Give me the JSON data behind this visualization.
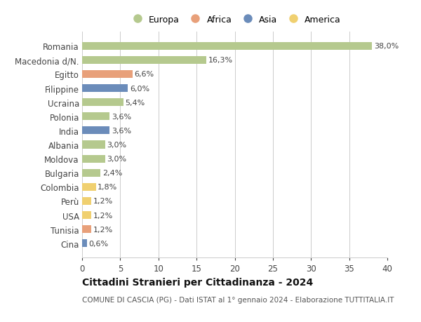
{
  "title": "Cittadini Stranieri per Cittadinanza - 2024",
  "subtitle": "COMUNE DI CASCIA (PG) - Dati ISTAT al 1° gennaio 2024 - Elaborazione TUTTITALIA.IT",
  "legend_labels": [
    "Europa",
    "Africa",
    "Asia",
    "America"
  ],
  "legend_colors": [
    "#b5c98e",
    "#e8a07a",
    "#6b8cba",
    "#f0d070"
  ],
  "countries": [
    "Romania",
    "Macedonia d/N.",
    "Egitto",
    "Filippine",
    "Ucraina",
    "Polonia",
    "India",
    "Albania",
    "Moldova",
    "Bulgaria",
    "Colombia",
    "Perù",
    "USA",
    "Tunisia",
    "Cina"
  ],
  "values": [
    38.0,
    16.3,
    6.6,
    6.0,
    5.4,
    3.6,
    3.6,
    3.0,
    3.0,
    2.4,
    1.8,
    1.2,
    1.2,
    1.2,
    0.6
  ],
  "labels": [
    "38,0%",
    "16,3%",
    "6,6%",
    "6,0%",
    "5,4%",
    "3,6%",
    "3,6%",
    "3,0%",
    "3,0%",
    "2,4%",
    "1,8%",
    "1,2%",
    "1,2%",
    "1,2%",
    "0,6%"
  ],
  "bar_colors": [
    "#b5c98e",
    "#b5c98e",
    "#e8a07a",
    "#6b8cba",
    "#b5c98e",
    "#b5c98e",
    "#6b8cba",
    "#b5c98e",
    "#b5c98e",
    "#b5c98e",
    "#f0d070",
    "#f0d070",
    "#f0d070",
    "#e8a07a",
    "#6b8cba"
  ],
  "xlim": [
    0,
    40
  ],
  "xticks": [
    0,
    5,
    10,
    15,
    20,
    25,
    30,
    35,
    40
  ],
  "background_color": "#ffffff",
  "grid_color": "#cccccc",
  "bar_height": 0.55,
  "label_fontsize": 8,
  "ytick_fontsize": 8.5,
  "xtick_fontsize": 8.5,
  "title_fontsize": 10,
  "subtitle_fontsize": 7.5,
  "legend_fontsize": 9
}
